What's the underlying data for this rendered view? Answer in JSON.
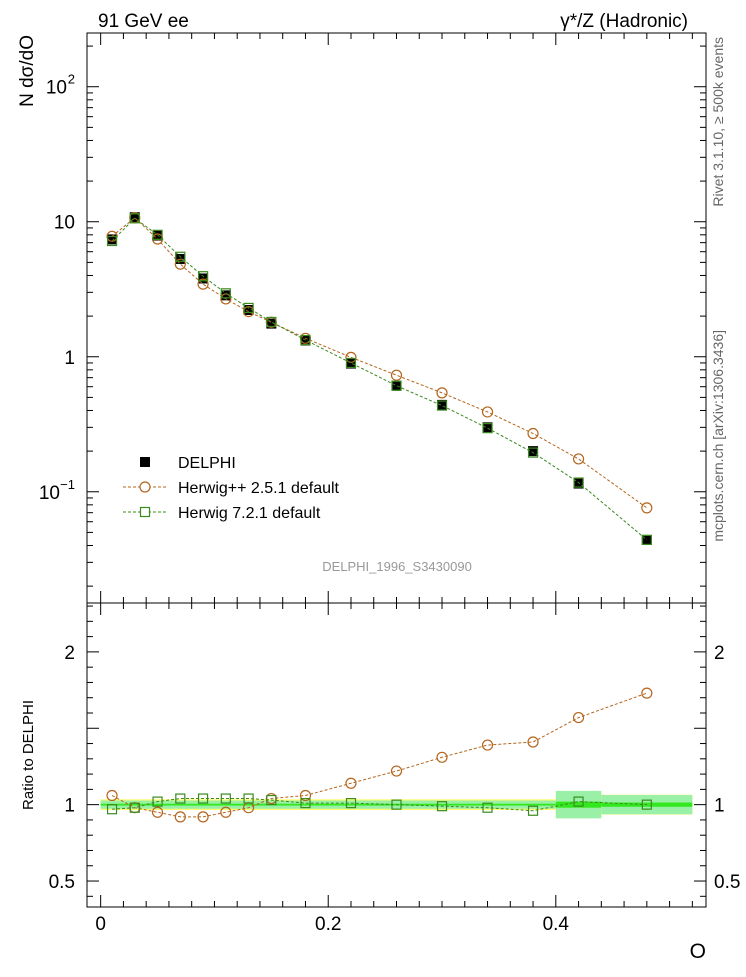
{
  "header": {
    "left_label": "91 GeV ee",
    "right_label": "γ*/Z (Hadronic)"
  },
  "side_labels": {
    "rivet": "Rivet 3.1.10, ≥ 500k events",
    "mcplots": "mcplots.cern.ch [arXiv:1306.3436]"
  },
  "chart_data": [
    {
      "type": "scatter",
      "panel": "main",
      "ylabel": "N dσ/dO",
      "xlabel": "",
      "yscale": "log",
      "ylim": [
        0.015,
        250
      ],
      "xlim": [
        -0.012,
        0.532
      ],
      "watermark": "DELPHI_1996_S3430090",
      "legend_position": "lower-left",
      "x": [
        0.01,
        0.03,
        0.05,
        0.07,
        0.09,
        0.11,
        0.13,
        0.15,
        0.18,
        0.22,
        0.26,
        0.3,
        0.34,
        0.38,
        0.42,
        0.48
      ],
      "series": [
        {
          "name": "DELPHI",
          "marker": "filled-square",
          "color": "#000000",
          "values": [
            7.4,
            10.8,
            7.9,
            5.3,
            3.8,
            2.85,
            2.22,
            1.76,
            1.32,
            0.89,
            0.61,
            0.44,
            0.3,
            0.2,
            0.115,
            0.044
          ]
        },
        {
          "name": "Herwig++ 2.5.1 default",
          "marker": "open-circle",
          "color": "#b5651d",
          "values": [
            7.8,
            10.7,
            7.45,
            4.85,
            3.45,
            2.68,
            2.16,
            1.8,
            1.37,
            0.99,
            0.73,
            0.54,
            0.39,
            0.27,
            0.175,
            0.076
          ]
        },
        {
          "name": "Herwig 7.2.1 default",
          "marker": "open-square",
          "color": "#3a8a1e",
          "values": [
            7.2,
            10.6,
            8.0,
            5.5,
            3.95,
            2.95,
            2.3,
            1.81,
            1.33,
            0.9,
            0.61,
            0.435,
            0.296,
            0.195,
            0.117,
            0.044
          ]
        }
      ],
      "yticks": [
        {
          "value": 100,
          "mantissa": "10",
          "exponent": "2"
        },
        {
          "value": 10,
          "mantissa": "10",
          "exponent": ""
        },
        {
          "value": 1,
          "mantissa": "1",
          "exponent": ""
        },
        {
          "value": 0.1,
          "mantissa": "10",
          "exponent": "−1"
        }
      ]
    },
    {
      "type": "scatter",
      "panel": "ratio",
      "ylabel": "Ratio to DELPHI",
      "xlabel": "O",
      "ylim": [
        0.33,
        2.32
      ],
      "xlim": [
        -0.012,
        0.532
      ],
      "reference_band": {
        "color_inner": "#33e81e",
        "color_mid": "#9bf0a8",
        "color_outer": "#fdfd6a",
        "bins": [
          {
            "x0": 0.0,
            "x1": 0.4,
            "inner": 0.015,
            "outer": 0.035
          },
          {
            "x0": 0.4,
            "x1": 0.44,
            "inner": 0.05,
            "outer": 0.08
          },
          {
            "x0": 0.44,
            "x1": 0.52,
            "inner": 0.035,
            "outer": 0.065
          }
        ]
      },
      "x": [
        0.01,
        0.03,
        0.05,
        0.07,
        0.09,
        0.11,
        0.13,
        0.15,
        0.18,
        0.22,
        0.26,
        0.3,
        0.34,
        0.38,
        0.42,
        0.48
      ],
      "series": [
        {
          "name": "Herwig++ 2.5.1 default",
          "marker": "open-circle",
          "color": "#b5651d",
          "values": [
            1.06,
            0.98,
            0.95,
            0.92,
            0.92,
            0.95,
            0.98,
            1.04,
            1.06,
            1.14,
            1.22,
            1.31,
            1.39,
            1.41,
            1.57,
            1.73
          ]
        },
        {
          "name": "Herwig 7.2.1 default",
          "marker": "open-square",
          "color": "#3a8a1e",
          "values": [
            0.97,
            0.98,
            1.02,
            1.04,
            1.04,
            1.04,
            1.04,
            1.03,
            1.01,
            1.01,
            1.0,
            0.99,
            0.98,
            0.96,
            1.02,
            1.0
          ]
        }
      ],
      "yticks": [
        {
          "value": 2,
          "label": "2"
        },
        {
          "value": 1,
          "label": "1"
        },
        {
          "value": 0.5,
          "label": "0.5"
        }
      ],
      "xticks": [
        {
          "value": 0,
          "label": "0"
        },
        {
          "value": 0.2,
          "label": "0.2"
        },
        {
          "value": 0.4,
          "label": "0.4"
        }
      ]
    }
  ]
}
